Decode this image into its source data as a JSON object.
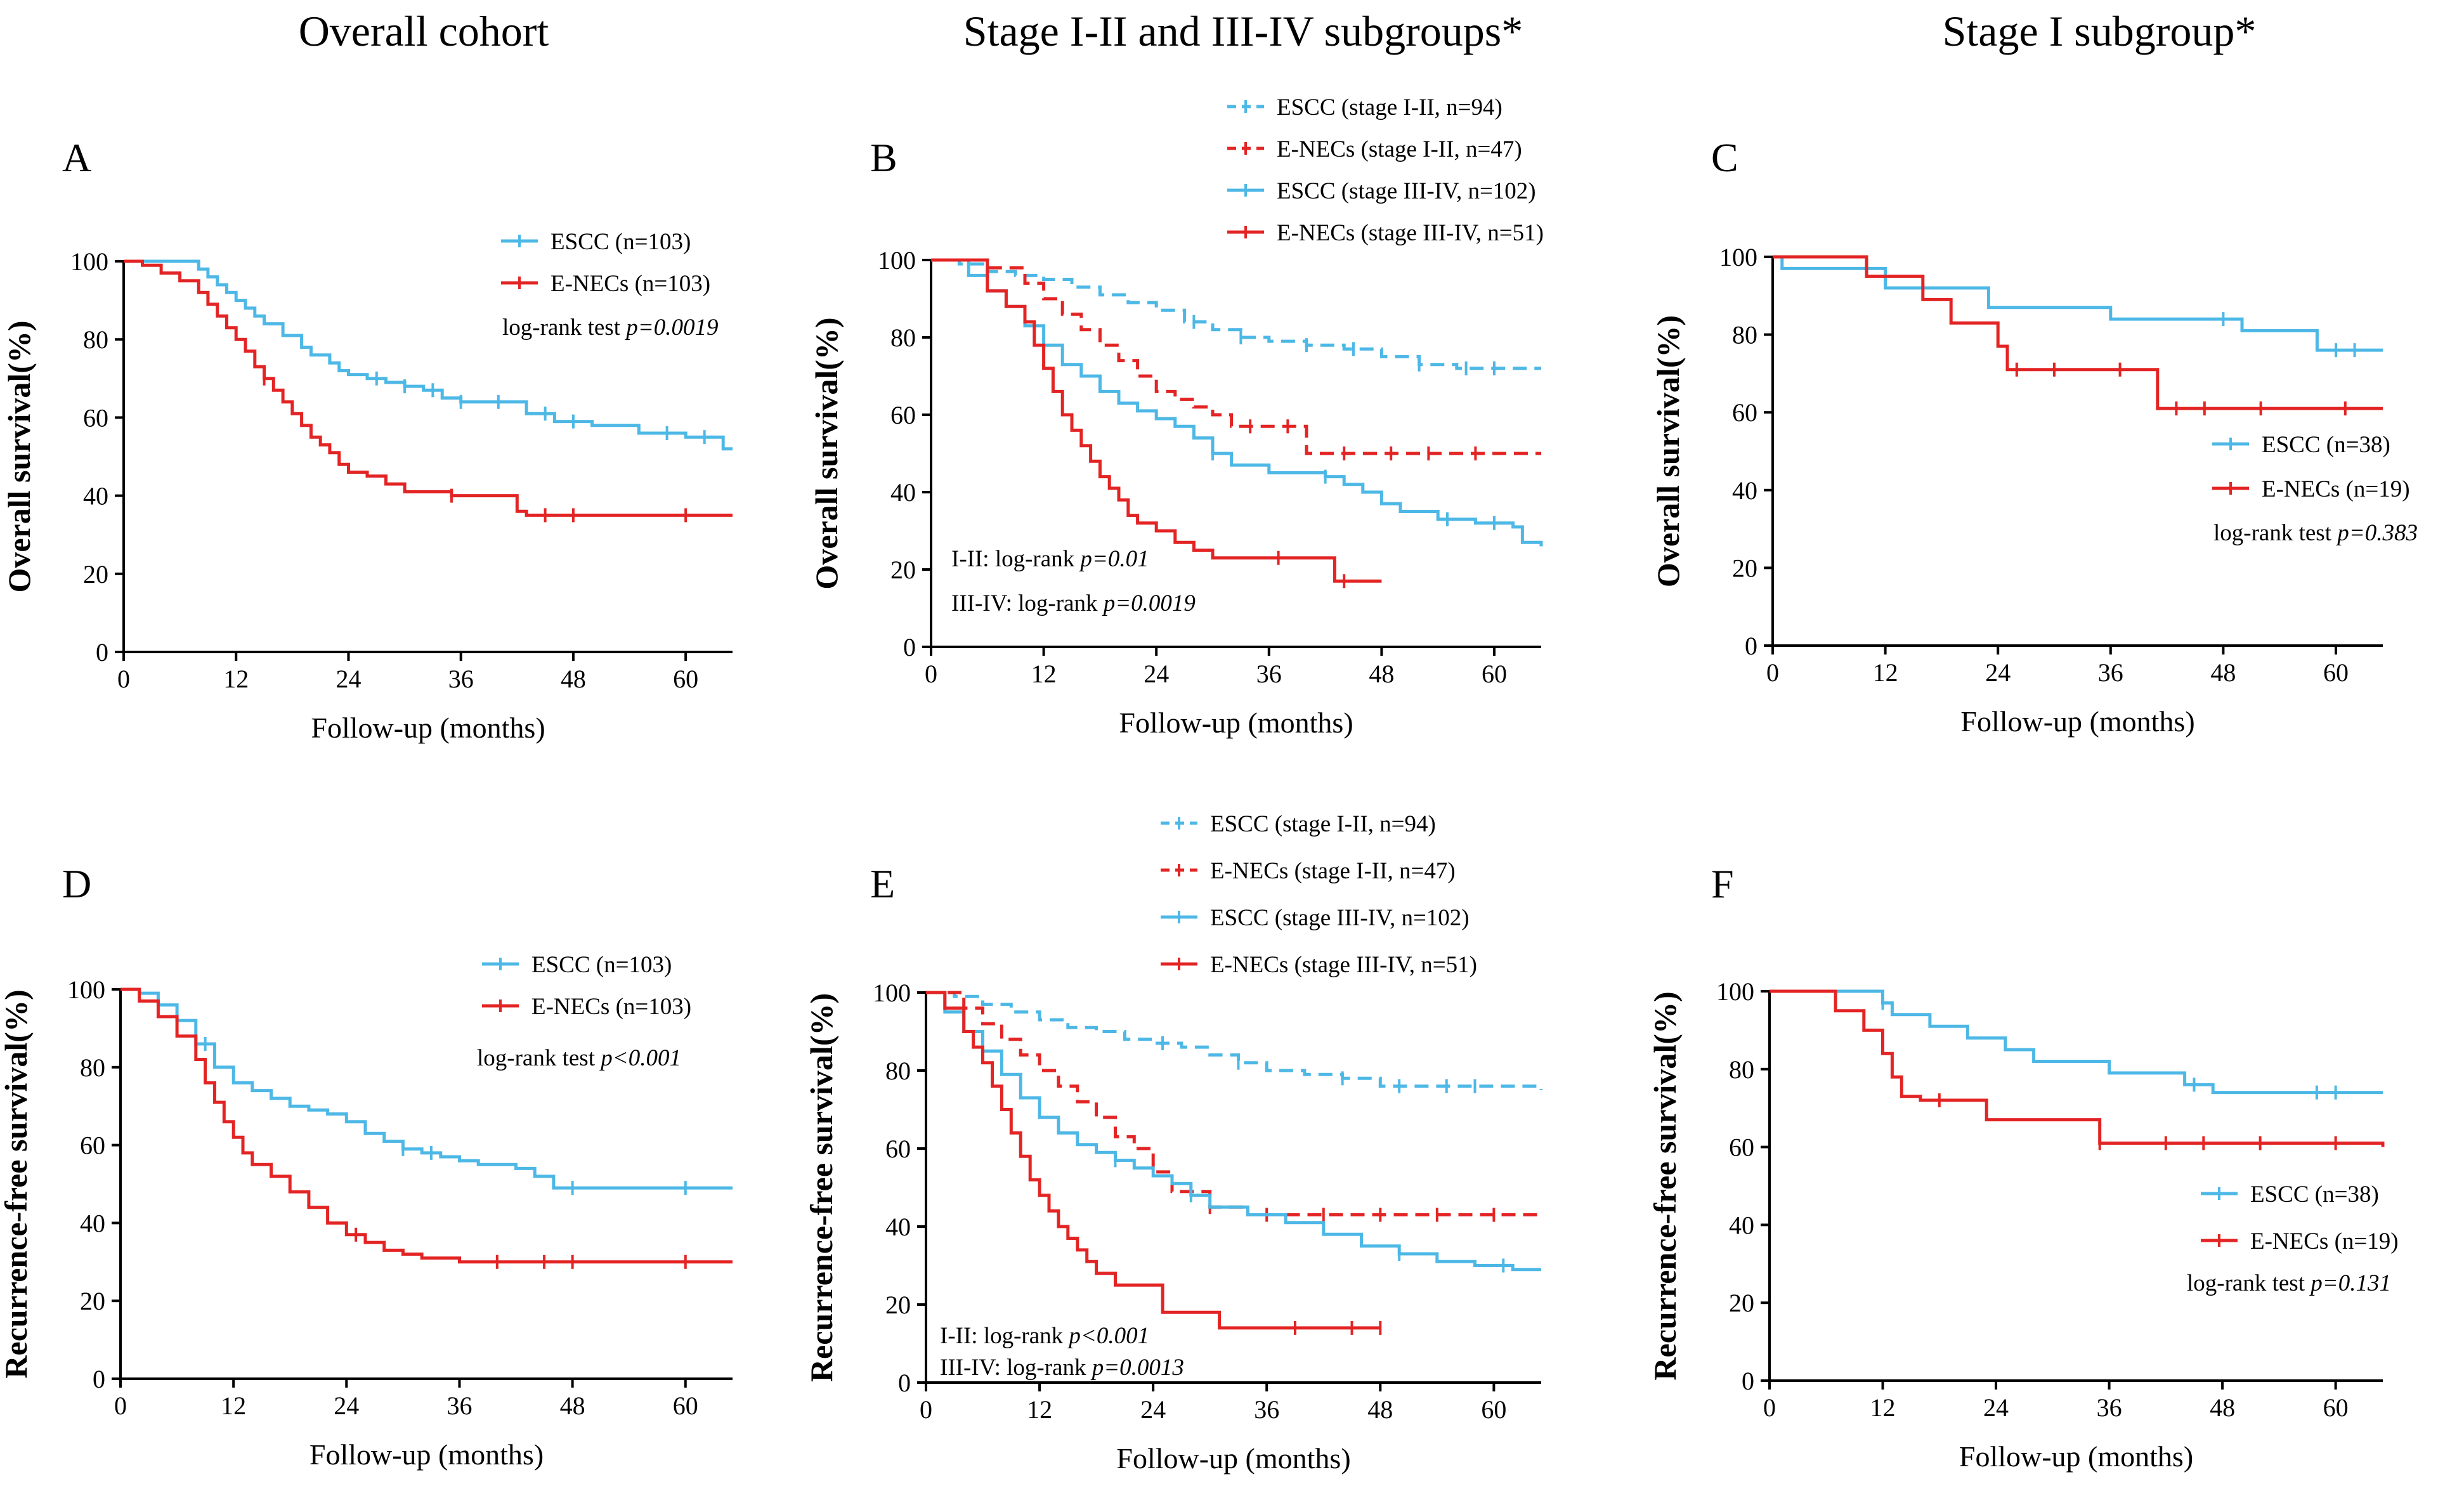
{
  "column_titles": [
    "Overall cohort",
    "Stage I-II and III-IV subgroups*",
    "Stage I subgroup*"
  ],
  "colors": {
    "escc": "#4DB8E6",
    "enecs": "#E32424"
  },
  "chart_data": [
    {
      "panel": "A",
      "type": "line",
      "subtype": "kaplan-meier",
      "xlabel": "Follow-up (months)",
      "ylabel": "Overall survival(%)",
      "xlim": [
        0,
        65
      ],
      "ylim": [
        0,
        100
      ],
      "xticks": [
        0,
        12,
        24,
        36,
        48,
        60
      ],
      "yticks": [
        0,
        20,
        40,
        60,
        80,
        100
      ],
      "legend_position": "top-right",
      "annotations": [
        {
          "prefix": "log-rank test",
          "p": "p=0.0019"
        }
      ],
      "series": [
        {
          "name": "ESCC (n=103)",
          "color": "#4DB8E6",
          "dash": false,
          "x": [
            0,
            7,
            8,
            9,
            10,
            11,
            12,
            13,
            14,
            15,
            17,
            19,
            20,
            22,
            23,
            24,
            26,
            28,
            30,
            32,
            34,
            36,
            38,
            40,
            43,
            46,
            50,
            55,
            60,
            64,
            65
          ],
          "y": [
            100,
            100,
            98,
            96,
            94,
            92,
            90,
            88,
            86,
            84,
            81,
            78,
            76,
            74,
            72,
            71,
            70,
            69,
            68,
            67,
            65,
            64,
            64,
            64,
            61,
            59,
            58,
            56,
            55,
            52,
            52
          ],
          "censor_x": [
            27,
            30,
            33,
            36,
            40,
            45,
            48,
            58,
            62
          ]
        },
        {
          "name": "E-NECs (n=103)",
          "color": "#E32424",
          "dash": false,
          "x": [
            0,
            2,
            4,
            6,
            8,
            9,
            10,
            11,
            12,
            13,
            14,
            15,
            16,
            17,
            18,
            19,
            20,
            21,
            22,
            23,
            24,
            26,
            28,
            30,
            35,
            40,
            42,
            43,
            65
          ],
          "y": [
            100,
            99,
            97,
            95,
            92,
            89,
            86,
            83,
            80,
            77,
            73,
            70,
            67,
            64,
            61,
            58,
            55,
            53,
            51,
            48,
            46,
            45,
            43,
            41,
            40,
            40,
            36,
            35,
            35
          ],
          "censor_x": [
            15,
            35,
            45,
            48,
            60
          ]
        }
      ]
    },
    {
      "panel": "B",
      "type": "line",
      "subtype": "kaplan-meier",
      "xlabel": "Follow-up (months)",
      "ylabel": "Overall survival(%)",
      "xlim": [
        0,
        65
      ],
      "ylim": [
        0,
        100
      ],
      "xticks": [
        0,
        12,
        24,
        36,
        48,
        60
      ],
      "yticks": [
        0,
        20,
        40,
        60,
        80,
        100
      ],
      "legend_position": "top-right (above plot)",
      "annotations": [
        {
          "prefix": "I-II: log-rank",
          "p": "p=0.01"
        },
        {
          "prefix": "III-IV: log-rank",
          "p": "p=0.0019"
        }
      ],
      "series": [
        {
          "name": "ESCC (stage I-II, n=94)",
          "color": "#4DB8E6",
          "dash": true,
          "x": [
            0,
            3,
            6,
            9,
            12,
            15,
            18,
            21,
            24,
            27,
            30,
            33,
            36,
            40,
            44,
            48,
            52,
            56,
            65
          ],
          "y": [
            100,
            99,
            97,
            96,
            95,
            93,
            91,
            89,
            87,
            84,
            82,
            80,
            79,
            78,
            77,
            75,
            73,
            72,
            72
          ],
          "censor_x": [
            28,
            33,
            40,
            45,
            52,
            57,
            60
          ]
        },
        {
          "name": "E-NECs (stage I-II, n=47)",
          "color": "#E32424",
          "dash": true,
          "x": [
            0,
            6,
            10,
            12,
            14,
            16,
            18,
            20,
            22,
            24,
            26,
            28,
            30,
            32,
            36,
            40,
            65
          ],
          "y": [
            100,
            98,
            94,
            90,
            86,
            82,
            78,
            74,
            70,
            66,
            64,
            62,
            60,
            57,
            57,
            50,
            50
          ],
          "censor_x": [
            34,
            38,
            44,
            49,
            53,
            58
          ]
        },
        {
          "name": "ESCC (stage III-IV, n=102)",
          "color": "#4DB8E6",
          "dash": false,
          "x": [
            0,
            4,
            6,
            8,
            10,
            12,
            14,
            16,
            18,
            20,
            22,
            24,
            26,
            28,
            30,
            32,
            36,
            42,
            44,
            46,
            48,
            50,
            54,
            58,
            62,
            63,
            65
          ],
          "y": [
            100,
            96,
            92,
            88,
            83,
            78,
            73,
            70,
            66,
            63,
            61,
            59,
            57,
            54,
            50,
            47,
            45,
            44,
            42,
            40,
            37,
            35,
            33,
            32,
            31,
            27,
            26
          ],
          "censor_x": [
            30,
            42,
            55,
            60
          ]
        },
        {
          "name": "E-NECs (stage III-IV, n=51)",
          "color": "#E32424",
          "dash": false,
          "x": [
            0,
            6,
            8,
            10,
            11,
            12,
            13,
            14,
            15,
            16,
            17,
            18,
            19,
            20,
            21,
            22,
            24,
            26,
            28,
            30,
            42,
            43,
            48
          ],
          "y": [
            100,
            92,
            88,
            84,
            78,
            72,
            66,
            60,
            56,
            52,
            48,
            44,
            41,
            38,
            34,
            32,
            30,
            27,
            25,
            23,
            23,
            17,
            17
          ],
          "censor_x": [
            37,
            44
          ]
        }
      ]
    },
    {
      "panel": "C",
      "type": "line",
      "subtype": "kaplan-meier",
      "xlabel": "Follow-up (months)",
      "ylabel": "Overall survival(%)",
      "xlim": [
        0,
        65
      ],
      "ylim": [
        0,
        100
      ],
      "xticks": [
        0,
        12,
        24,
        36,
        48,
        60
      ],
      "yticks": [
        0,
        20,
        40,
        60,
        80,
        100
      ],
      "legend_position": "bottom-right",
      "annotations": [
        {
          "prefix": "log-rank test",
          "p": "p=0.383"
        }
      ],
      "series": [
        {
          "name": "ESCC (n=38)",
          "color": "#4DB8E6",
          "dash": false,
          "x": [
            0,
            1,
            11,
            12,
            20,
            23,
            31,
            36,
            47,
            50,
            58,
            65
          ],
          "y": [
            100,
            97,
            97,
            92,
            92,
            87,
            87,
            84,
            84,
            81,
            76,
            76
          ],
          "censor_x": [
            48,
            60,
            62
          ]
        },
        {
          "name": "E-NECs (n=19)",
          "color": "#E32424",
          "dash": false,
          "x": [
            0,
            9,
            10,
            13,
            16,
            19,
            24,
            25,
            40,
            41,
            65
          ],
          "y": [
            100,
            100,
            95,
            95,
            89,
            83,
            77,
            71,
            71,
            61,
            61
          ],
          "censor_x": [
            26,
            30,
            37,
            43,
            46,
            52,
            61
          ]
        }
      ]
    },
    {
      "panel": "D",
      "type": "line",
      "subtype": "kaplan-meier",
      "xlabel": "Follow-up (months)",
      "ylabel": "Recurrence-free survival(%)",
      "xlim": [
        0,
        65
      ],
      "ylim": [
        0,
        100
      ],
      "xticks": [
        0,
        12,
        24,
        36,
        48,
        60
      ],
      "yticks": [
        0,
        20,
        40,
        60,
        80,
        100
      ],
      "legend_position": "top-right",
      "annotations": [
        {
          "prefix": "log-rank test",
          "p": "p<0.001"
        }
      ],
      "series": [
        {
          "name": "ESCC (n=103)",
          "color": "#4DB8E6",
          "dash": false,
          "x": [
            0,
            2,
            4,
            6,
            8,
            10,
            12,
            14,
            16,
            18,
            20,
            22,
            24,
            26,
            28,
            30,
            32,
            34,
            36,
            38,
            40,
            42,
            44,
            46,
            65
          ],
          "y": [
            100,
            99,
            96,
            92,
            86,
            80,
            76,
            74,
            72,
            70,
            69,
            68,
            66,
            63,
            61,
            59,
            58,
            57,
            56,
            55,
            55,
            54,
            52,
            49,
            49
          ],
          "censor_x": [
            9,
            30,
            33,
            48,
            60
          ]
        },
        {
          "name": "E-NECs (n=103)",
          "color": "#E32424",
          "dash": false,
          "x": [
            0,
            2,
            4,
            6,
            8,
            9,
            10,
            11,
            12,
            13,
            14,
            16,
            18,
            20,
            22,
            24,
            26,
            28,
            30,
            32,
            36,
            65
          ],
          "y": [
            100,
            97,
            93,
            88,
            82,
            76,
            71,
            66,
            62,
            58,
            55,
            52,
            48,
            44,
            40,
            37,
            35,
            33,
            32,
            31,
            30,
            30
          ],
          "censor_x": [
            25,
            40,
            45,
            48,
            60
          ]
        }
      ]
    },
    {
      "panel": "E",
      "type": "line",
      "subtype": "kaplan-meier",
      "xlabel": "Follow-up (months)",
      "ylabel": "Recurrence-free survival(%)",
      "xlim": [
        0,
        65
      ],
      "ylim": [
        0,
        100
      ],
      "xticks": [
        0,
        12,
        24,
        36,
        48,
        60
      ],
      "yticks": [
        0,
        20,
        40,
        60,
        80,
        100
      ],
      "legend_position": "top-right (above plot)",
      "annotations": [
        {
          "prefix": "I-II: log-rank",
          "p": "p<0.001"
        },
        {
          "prefix": "III-IV: log-rank",
          "p": "p=0.0013"
        }
      ],
      "series": [
        {
          "name": "ESCC (stage I-II, n=94)",
          "color": "#4DB8E6",
          "dash": true,
          "x": [
            0,
            3,
            6,
            9,
            12,
            15,
            18,
            21,
            24,
            27,
            30,
            33,
            36,
            40,
            44,
            48,
            65
          ],
          "y": [
            100,
            99,
            97,
            95,
            93,
            91,
            90,
            88,
            87,
            86,
            84,
            82,
            80,
            79,
            78,
            76,
            75
          ],
          "censor_x": [
            25,
            33,
            44,
            50,
            55,
            58
          ]
        },
        {
          "name": "E-NECs (stage I-II, n=47)",
          "color": "#E32424",
          "dash": true,
          "x": [
            0,
            4,
            6,
            8,
            10,
            12,
            14,
            16,
            18,
            20,
            22,
            24,
            26,
            30,
            34,
            65
          ],
          "y": [
            100,
            96,
            92,
            88,
            84,
            80,
            76,
            72,
            68,
            63,
            60,
            54,
            49,
            45,
            43,
            43
          ],
          "censor_x": [
            30,
            36,
            42,
            48,
            54,
            60
          ]
        },
        {
          "name": "ESCC (stage III-IV, n=102)",
          "color": "#4DB8E6",
          "dash": false,
          "x": [
            0,
            2,
            4,
            6,
            8,
            10,
            12,
            14,
            16,
            18,
            20,
            22,
            24,
            26,
            28,
            30,
            34,
            38,
            42,
            46,
            50,
            54,
            58,
            62,
            65
          ],
          "y": [
            100,
            95,
            90,
            85,
            79,
            73,
            68,
            64,
            61,
            59,
            57,
            55,
            53,
            51,
            48,
            45,
            43,
            41,
            38,
            35,
            33,
            31,
            30,
            29,
            29
          ],
          "censor_x": [
            20,
            28,
            50,
            61
          ]
        },
        {
          "name": "E-NECs (stage III-IV, n=51)",
          "color": "#E32424",
          "dash": false,
          "x": [
            0,
            2,
            4,
            5,
            6,
            7,
            8,
            9,
            10,
            11,
            12,
            13,
            14,
            15,
            16,
            17,
            18,
            20,
            24,
            25,
            30,
            31,
            48
          ],
          "y": [
            100,
            96,
            90,
            86,
            82,
            76,
            70,
            64,
            58,
            52,
            48,
            44,
            40,
            37,
            34,
            31,
            28,
            25,
            25,
            18,
            18,
            14,
            14
          ],
          "censor_x": [
            39,
            45,
            48
          ]
        }
      ]
    },
    {
      "panel": "F",
      "type": "line",
      "subtype": "kaplan-meier",
      "xlabel": "Follow-up (months)",
      "ylabel": "Recurrence-free survival(%)",
      "xlim": [
        0,
        65
      ],
      "ylim": [
        0,
        100
      ],
      "xticks": [
        0,
        12,
        24,
        36,
        48,
        60
      ],
      "yticks": [
        0,
        20,
        40,
        60,
        80,
        100
      ],
      "legend_position": "bottom-right",
      "annotations": [
        {
          "prefix": "log-rank test",
          "p": "p=0.131"
        }
      ],
      "series": [
        {
          "name": "ESCC (n=38)",
          "color": "#4DB8E6",
          "dash": false,
          "x": [
            0,
            12,
            13,
            17,
            21,
            25,
            28,
            36,
            44,
            47,
            65
          ],
          "y": [
            100,
            97,
            94,
            91,
            88,
            85,
            82,
            79,
            76,
            74,
            74
          ],
          "censor_x": [
            12,
            45,
            58,
            60
          ]
        },
        {
          "name": "E-NECs (n=19)",
          "color": "#E32424",
          "dash": false,
          "x": [
            0,
            7,
            10,
            12,
            13,
            14,
            16,
            23,
            34,
            35,
            65
          ],
          "y": [
            100,
            95,
            90,
            84,
            78,
            73,
            72,
            67,
            67,
            61,
            60
          ],
          "censor_x": [
            18,
            35,
            42,
            46,
            52,
            60
          ]
        }
      ]
    }
  ]
}
